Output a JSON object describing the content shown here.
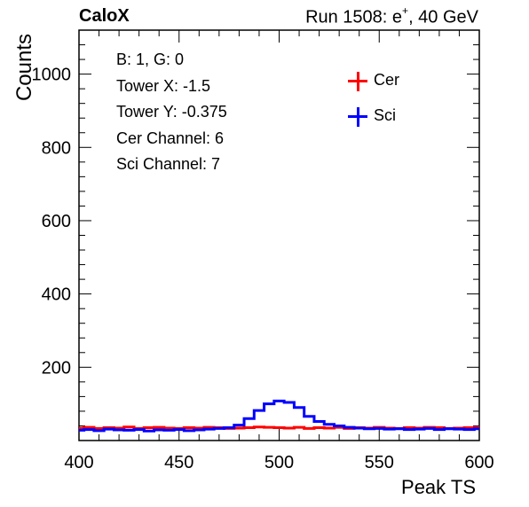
{
  "header": {
    "left": "CaloX",
    "right_pre": "Run 1508: e",
    "right_sup": "+",
    "right_post": ", 40 GeV"
  },
  "info_box": {
    "lines": [
      "B: 1, G: 0",
      "Tower X: -1.5",
      "Tower Y: -0.375",
      "Cer Channel: 6",
      "Sci Channel: 7"
    ]
  },
  "colors": {
    "cer": "#ff0000",
    "sci": "#0000ff"
  },
  "chart_data": {
    "type": "line",
    "xlabel": "Peak TS",
    "ylabel": "Counts",
    "xlim": [
      400,
      600
    ],
    "ylim": [
      0,
      1120
    ],
    "x_ticks": [
      400,
      450,
      500,
      550,
      600
    ],
    "y_ticks": [
      200,
      400,
      600,
      800,
      1000
    ],
    "legend": "top-right",
    "series": [
      {
        "name": "Cer",
        "color": "#ff0000",
        "x": [
          400,
          405,
          410,
          415,
          420,
          425,
          430,
          435,
          440,
          445,
          450,
          455,
          460,
          465,
          470,
          475,
          480,
          485,
          490,
          495,
          500,
          505,
          510,
          515,
          520,
          525,
          530,
          535,
          540,
          545,
          550,
          555,
          560,
          565,
          570,
          575,
          580,
          585,
          590,
          595,
          600
        ],
        "values": [
          34,
          36,
          33,
          35,
          34,
          37,
          33,
          35,
          36,
          34,
          33,
          35,
          34,
          36,
          35,
          33,
          34,
          35,
          37,
          36,
          35,
          34,
          36,
          33,
          35,
          34,
          36,
          33,
          35,
          34,
          36,
          34,
          33,
          35,
          34,
          36,
          35,
          33,
          34,
          35,
          36
        ]
      },
      {
        "name": "Sci",
        "color": "#0000ff",
        "x": [
          400,
          405,
          410,
          415,
          420,
          425,
          430,
          435,
          440,
          445,
          450,
          455,
          460,
          465,
          470,
          475,
          480,
          485,
          490,
          495,
          500,
          505,
          510,
          515,
          520,
          525,
          530,
          535,
          540,
          545,
          550,
          555,
          560,
          565,
          570,
          575,
          580,
          585,
          590,
          595,
          600
        ],
        "values": [
          28,
          30,
          27,
          31,
          29,
          28,
          30,
          26,
          29,
          28,
          30,
          27,
          29,
          31,
          33,
          35,
          42,
          60,
          82,
          100,
          108,
          104,
          90,
          66,
          52,
          44,
          40,
          36,
          34,
          32,
          33,
          31,
          32,
          30,
          31,
          33,
          30,
          32,
          31,
          30,
          32
        ]
      }
    ]
  }
}
